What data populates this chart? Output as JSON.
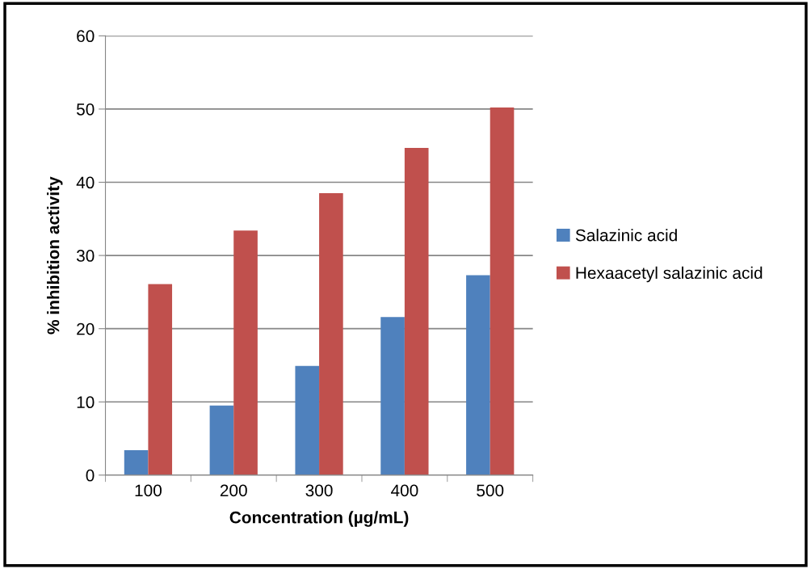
{
  "chart_data": {
    "type": "bar",
    "xlabel": "Concentration (µg/mL)",
    "ylabel": "% inhibition activity",
    "categories": [
      "100",
      "200",
      "300",
      "400",
      "500"
    ],
    "series": [
      {
        "name": "Salazinic acid",
        "color": "#4f81bd",
        "values": [
          3.4,
          9.5,
          14.9,
          21.6,
          27.3
        ]
      },
      {
        "name": "Hexaacetyl salazinic acid",
        "color": "#c0504d",
        "values": [
          26.1,
          33.4,
          38.5,
          44.7,
          50.2
        ]
      }
    ],
    "ylim": [
      0,
      60
    ],
    "yticks": [
      0,
      10,
      20,
      30,
      40,
      50,
      60
    ],
    "grid": "y",
    "legend": "right"
  }
}
